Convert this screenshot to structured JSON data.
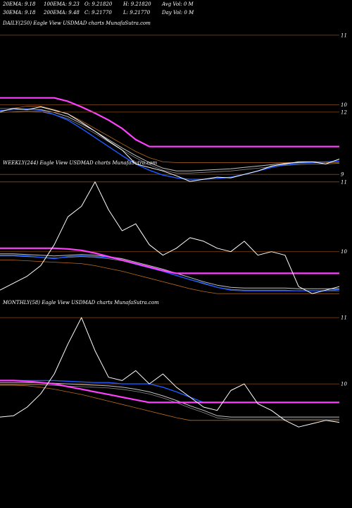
{
  "header": {
    "rows": [
      [
        "20EMA: 9.18",
        "100EMA: 9.23",
        "O: 9.21820",
        "H: 9.21820",
        "Avg Vol: 0  M"
      ],
      [
        "30EMA: 9.18",
        "200EMA: 9.48",
        "C: 9.21770",
        "L: 9.21770",
        "Day Vol: 0  M"
      ]
    ]
  },
  "colors": {
    "background": "#000000",
    "price": "#ffffff",
    "ema_short": "#1e5aff",
    "ema_mid": "#c0c0c0",
    "ema_long": "#ff40ff",
    "band": "#b86a1e",
    "grid": "#8a4a14"
  },
  "chart_data": [
    {
      "type": "line",
      "title": "DAILY(250) Eagle  View  USDMAD charts MunafaSutra.com",
      "ylim": [
        8.85,
        11.1
      ],
      "yticks": [
        {
          "value": 11,
          "label": "11"
        },
        {
          "value": 10,
          "label": "10"
        },
        {
          "value": 9,
          "label": "9"
        }
      ],
      "x": [
        0,
        4,
        8,
        12,
        16,
        20,
        24,
        28,
        32,
        36,
        40,
        44,
        48,
        52,
        56,
        60,
        64,
        68,
        72,
        76,
        80,
        84,
        88,
        92,
        96,
        100
      ],
      "series": [
        {
          "role": "price",
          "values": [
            9.9,
            9.95,
            9.93,
            9.97,
            9.92,
            9.87,
            9.75,
            9.62,
            9.48,
            9.35,
            9.15,
            9.1,
            9.05,
            8.98,
            8.9,
            8.93,
            8.96,
            8.95,
            9.0,
            9.05,
            9.12,
            9.15,
            9.18,
            9.18,
            9.15,
            9.22
          ]
        },
        {
          "role": "ema_short",
          "values": [
            9.92,
            9.93,
            9.94,
            9.92,
            9.86,
            9.78,
            9.66,
            9.53,
            9.4,
            9.27,
            9.15,
            9.06,
            8.99,
            8.95,
            8.93,
            8.93,
            8.94,
            8.96,
            9.0,
            9.05,
            9.1,
            9.14,
            9.16,
            9.17,
            9.18,
            9.19
          ]
        },
        {
          "role": "ema_mid",
          "values": [
            9.92,
            9.93,
            9.94,
            9.93,
            9.89,
            9.83,
            9.73,
            9.62,
            9.5,
            9.38,
            9.27,
            9.17,
            9.09,
            9.05,
            9.05,
            9.06,
            9.07,
            9.08,
            9.1,
            9.12,
            9.14,
            9.16,
            9.17,
            9.18,
            9.18,
            9.19
          ]
        },
        {
          "role": "ema_long",
          "values": [
            10.1,
            10.1,
            10.1,
            10.1,
            10.1,
            10.05,
            9.97,
            9.88,
            9.78,
            9.66,
            9.5,
            9.4,
            9.4,
            9.4,
            9.4,
            9.4,
            9.4,
            9.4,
            9.4,
            9.4,
            9.4,
            9.4,
            9.4,
            9.4,
            9.4,
            9.4
          ]
        },
        {
          "role": "band",
          "values": [
            9.95,
            9.95,
            9.98,
            9.98,
            9.93,
            9.87,
            9.77,
            9.66,
            9.55,
            9.44,
            9.33,
            9.24,
            9.18,
            9.17,
            9.17,
            9.17,
            9.17,
            9.17,
            9.17,
            9.17,
            9.17,
            9.17,
            9.17,
            9.17,
            9.17,
            9.17
          ]
        }
      ]
    },
    {
      "type": "line",
      "title": "WEEKLY(244) Eagle  View  USDMAD charts MunafaSutra.com",
      "ylim": [
        9.3,
        11.2
      ],
      "yticks": [
        {
          "value": 12,
          "label": "12"
        },
        {
          "value": 11,
          "label": "11"
        },
        {
          "value": 10,
          "label": "10"
        }
      ],
      "x": [
        0,
        4,
        8,
        12,
        16,
        20,
        24,
        28,
        32,
        36,
        40,
        44,
        48,
        52,
        56,
        60,
        64,
        68,
        72,
        76,
        80,
        84,
        88,
        92,
        96,
        100
      ],
      "series": [
        {
          "role": "price",
          "values": [
            9.45,
            9.55,
            9.65,
            9.8,
            10.1,
            10.5,
            10.65,
            11.0,
            10.6,
            10.3,
            10.4,
            10.1,
            9.95,
            10.05,
            10.2,
            10.15,
            10.05,
            10.0,
            10.15,
            9.95,
            10.0,
            9.95,
            9.5,
            9.4,
            9.45,
            9.5
          ]
        },
        {
          "role": "ema_short",
          "values": [
            9.95,
            9.95,
            9.94,
            9.92,
            9.9,
            9.93,
            9.94,
            9.93,
            9.92,
            9.88,
            9.82,
            9.77,
            9.72,
            9.66,
            9.6,
            9.55,
            9.49,
            9.45,
            9.44,
            9.44,
            9.44,
            9.44,
            9.44,
            9.44,
            9.44,
            9.46
          ]
        },
        {
          "role": "ema_mid",
          "values": [
            9.97,
            9.97,
            9.96,
            9.95,
            9.94,
            9.95,
            9.96,
            9.95,
            9.93,
            9.9,
            9.85,
            9.8,
            9.75,
            9.69,
            9.63,
            9.57,
            9.52,
            9.49,
            9.48,
            9.48,
            9.48,
            9.48,
            9.47,
            9.47,
            9.47,
            9.47
          ]
        },
        {
          "role": "ema_long",
          "values": [
            10.05,
            10.05,
            10.05,
            10.05,
            10.05,
            10.04,
            10.02,
            9.98,
            9.93,
            9.88,
            9.83,
            9.78,
            9.73,
            9.69,
            9.69,
            9.69,
            9.69,
            9.69,
            9.69,
            9.69,
            9.69,
            9.69,
            9.69,
            9.69,
            9.69,
            9.69
          ]
        },
        {
          "role": "band",
          "values": [
            9.88,
            9.88,
            9.87,
            9.86,
            9.85,
            9.84,
            9.83,
            9.8,
            9.76,
            9.72,
            9.67,
            9.62,
            9.57,
            9.52,
            9.47,
            9.43,
            9.4,
            9.4,
            9.4,
            9.4,
            9.4,
            9.4,
            9.4,
            9.4,
            9.4,
            9.4
          ]
        }
      ]
    },
    {
      "type": "line",
      "title": "MONTHLY(58) Eagle  View  USDMAD charts MunafaSutra.com",
      "ylim": [
        9.15,
        11.15
      ],
      "yticks": [
        {
          "value": 11,
          "label": "11"
        },
        {
          "value": 10,
          "label": "10"
        }
      ],
      "x": [
        0,
        4,
        8,
        12,
        16,
        20,
        24,
        28,
        32,
        36,
        40,
        44,
        48,
        52,
        56,
        60,
        64,
        68,
        72,
        76,
        80,
        84,
        88,
        92,
        96,
        100
      ],
      "series": [
        {
          "role": "price",
          "values": [
            9.5,
            9.52,
            9.65,
            9.85,
            10.15,
            10.6,
            11.0,
            10.5,
            10.1,
            10.05,
            10.2,
            10.0,
            10.15,
            9.95,
            9.8,
            9.65,
            9.6,
            9.9,
            10.0,
            9.7,
            9.6,
            9.45,
            9.35,
            9.4,
            9.45,
            9.42
          ]
        },
        {
          "role": "ema_short",
          "values": [
            10.05,
            10.05,
            10.05,
            10.05,
            10.05,
            10.04,
            10.03,
            10.02,
            10.02,
            10.0,
            10.0,
            10.0,
            9.95,
            9.88,
            9.8,
            9.72,
            9.72,
            9.72,
            9.72,
            9.72,
            9.72,
            9.72,
            9.72,
            9.72,
            9.72,
            9.72
          ]
        },
        {
          "role": "ema_mid",
          "values": [
            10.02,
            10.02,
            10.02,
            10.02,
            10.01,
            10.0,
            9.99,
            9.98,
            9.97,
            9.95,
            9.92,
            9.88,
            9.82,
            9.75,
            9.67,
            9.6,
            9.52,
            9.5,
            9.5,
            9.5,
            9.5,
            9.5,
            9.5,
            9.5,
            9.5,
            9.5
          ]
        },
        {
          "role": "ema_long",
          "values": [
            10.05,
            10.05,
            10.04,
            10.02,
            10.0,
            9.96,
            9.92,
            9.88,
            9.84,
            9.8,
            9.76,
            9.72,
            9.72,
            9.72,
            9.72,
            9.72,
            9.72,
            9.72,
            9.72,
            9.72,
            9.72,
            9.72,
            9.72,
            9.72,
            9.72,
            9.72
          ]
        },
        {
          "role": "band",
          "values": [
            9.98,
            9.98,
            9.97,
            9.95,
            9.92,
            9.88,
            9.84,
            9.79,
            9.74,
            9.69,
            9.64,
            9.59,
            9.54,
            9.49,
            9.45,
            9.45,
            9.45,
            9.45,
            9.45,
            9.45,
            9.45,
            9.45,
            9.45,
            9.45,
            9.45,
            9.45
          ]
        }
      ]
    }
  ]
}
